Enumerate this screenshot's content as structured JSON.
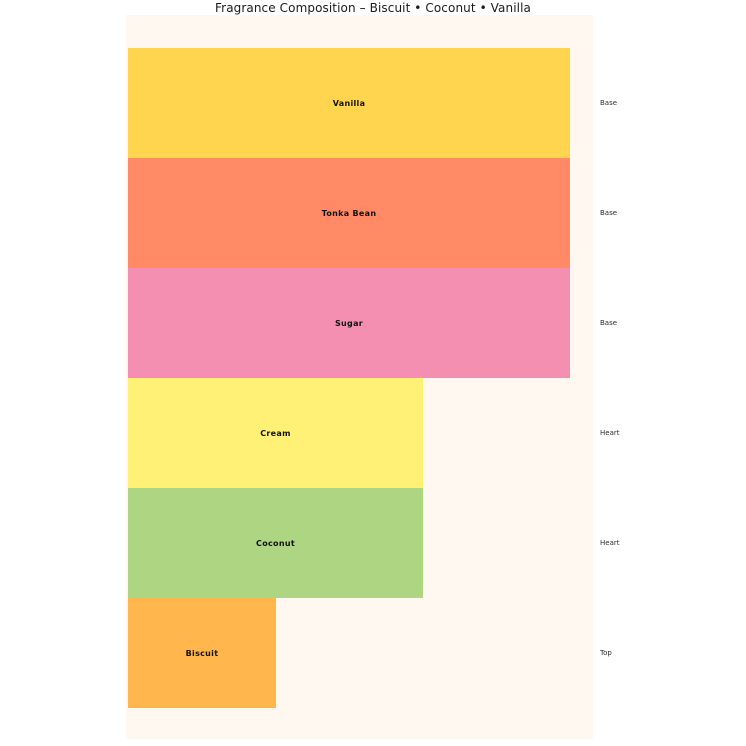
{
  "chart_data": {
    "type": "bar",
    "orientation": "horizontal",
    "title": "Fragrance Composition – Biscuit • Coconut • Vanilla",
    "categories": [
      "Vanilla",
      "Tonka Bean",
      "Sugar",
      "Cream",
      "Coconut",
      "Biscuit"
    ],
    "values": [
      1.0,
      1.0,
      1.0,
      0.667,
      0.667,
      0.335
    ],
    "values_note": "fraction of full plot width read from pixels (ratio 3 : 3 : 3 : 2 : 2 : 1)",
    "stage_labels": [
      "Base",
      "Base",
      "Base",
      "Heart",
      "Heart",
      "Top"
    ],
    "bar_colors": [
      "#ffd54f",
      "#ff8a65",
      "#f48fb1",
      "#fff176",
      "#aed581",
      "#ffb74d"
    ],
    "plot_background": "#fef8f0",
    "page_background": "#ffffff",
    "label_color": "#111111",
    "stage_label_color": "#2b2b2b",
    "grid": false,
    "axes_visible": false,
    "legend_position": "none"
  }
}
